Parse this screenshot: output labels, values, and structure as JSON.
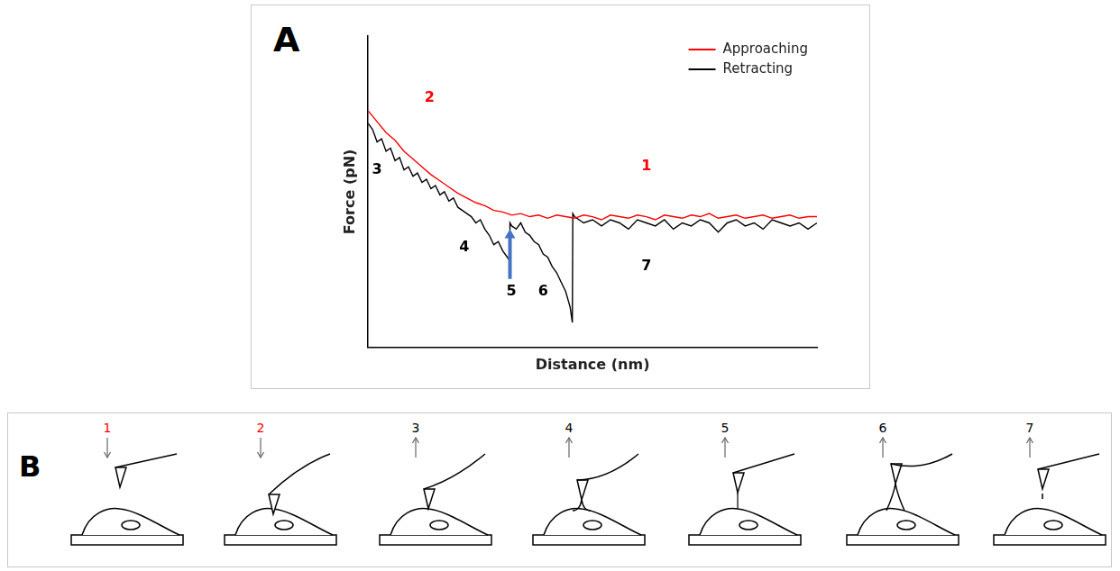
{
  "chart_data": {
    "type": "line",
    "panel_label": "A",
    "x_label": "Distance (nm)",
    "y_label": "Force (pN)",
    "xlim": [
      0,
      100
    ],
    "ylim": [
      0,
      100
    ],
    "tick_labels": false,
    "grid": false,
    "legend": "upper right",
    "series": [
      {
        "name": "Approaching",
        "color": "#ff0000",
        "x": [
          0,
          2,
          4,
          6,
          8,
          10,
          12,
          14,
          16,
          18,
          20,
          22,
          24,
          26,
          28,
          30,
          32,
          34,
          36,
          38,
          40,
          42,
          44,
          46,
          48,
          50,
          52,
          54,
          56,
          58,
          60,
          62,
          64,
          66,
          68,
          70,
          72,
          74,
          76,
          78,
          80,
          82,
          84,
          86,
          88,
          90,
          92,
          94,
          96,
          98,
          100
        ],
        "values": [
          76,
          72.5,
          69,
          66.5,
          63,
          60.5,
          58,
          55.5,
          53.5,
          51.5,
          49.5,
          48,
          46.5,
          45.5,
          44,
          43.5,
          42.5,
          43,
          42,
          42.5,
          41.5,
          42.5,
          42,
          41.5,
          42.5,
          42,
          41,
          42.5,
          42,
          41.5,
          42.5,
          42,
          41,
          42.5,
          42,
          41.5,
          42.5,
          42,
          43,
          41.5,
          42,
          42.5,
          41.5,
          42,
          42.5,
          41.5,
          42,
          42.5,
          41.5,
          42,
          42
        ]
      },
      {
        "name": "Retracting",
        "color": "#000000",
        "x": [
          0,
          1,
          2,
          3,
          4,
          5,
          6,
          7,
          8,
          9,
          10,
          11,
          12,
          13,
          14,
          15,
          16,
          17,
          18,
          19,
          20,
          21,
          22,
          23,
          24,
          25,
          26,
          27,
          28,
          29,
          30,
          31,
          31.5,
          31.6,
          32,
          33,
          34,
          35,
          36,
          37,
          38,
          39,
          40,
          41,
          42,
          43,
          44,
          45,
          45.5,
          45.6,
          46,
          48,
          50,
          52,
          54,
          56,
          58,
          60,
          62,
          64,
          66,
          68,
          70,
          72,
          74,
          76,
          78,
          80,
          82,
          84,
          86,
          88,
          90,
          92,
          94,
          96,
          98,
          100
        ],
        "values": [
          72,
          70,
          66,
          67,
          63,
          64,
          60,
          61,
          57,
          58,
          55,
          56,
          53,
          54,
          51,
          52,
          49,
          50,
          47,
          48,
          45,
          44,
          43,
          42,
          40,
          41,
          38,
          36,
          33,
          34,
          31,
          29,
          28,
          40,
          39,
          38,
          40,
          37,
          36,
          34,
          33,
          30,
          29,
          26,
          24,
          21,
          18,
          13,
          8,
          43,
          42,
          40,
          41,
          39,
          41,
          40,
          38,
          41,
          40,
          39,
          41,
          38,
          40,
          39,
          41,
          40,
          37,
          40,
          41,
          39,
          40,
          38,
          41,
          40,
          39,
          40,
          38,
          40
        ]
      }
    ],
    "annotations": [
      {
        "text": "1",
        "x": 62,
        "y": 58,
        "color": "#ff0000"
      },
      {
        "text": "2",
        "x": 13.7,
        "y": 80,
        "color": "#ff0000"
      },
      {
        "text": "3",
        "x": 2,
        "y": 57,
        "color": "#000000"
      },
      {
        "text": "4",
        "x": 21.4,
        "y": 32,
        "color": "#000000"
      },
      {
        "text": "5",
        "x": 31.9,
        "y": 18,
        "color": "#000000"
      },
      {
        "text": "6",
        "x": 39,
        "y": 18,
        "color": "#000000"
      },
      {
        "text": "7",
        "x": 62,
        "y": 26,
        "color": "#000000"
      }
    ],
    "arrows": [
      {
        "x": 31.6,
        "y_from": 22,
        "y_to": 38,
        "color": "#4472c4"
      }
    ]
  },
  "diagram": {
    "panel_label": "B",
    "steps": [
      {
        "label": "1",
        "color": "#ff0000",
        "direction": "down"
      },
      {
        "label": "2",
        "color": "#ff0000",
        "direction": "down"
      },
      {
        "label": "3",
        "color": "#000000",
        "direction": "up"
      },
      {
        "label": "4",
        "color": "#000000",
        "direction": "up"
      },
      {
        "label": "5",
        "color": "#000000",
        "direction": "up"
      },
      {
        "label": "6",
        "color": "#000000",
        "direction": "up"
      },
      {
        "label": "7",
        "color": "#000000",
        "direction": "up"
      }
    ]
  }
}
